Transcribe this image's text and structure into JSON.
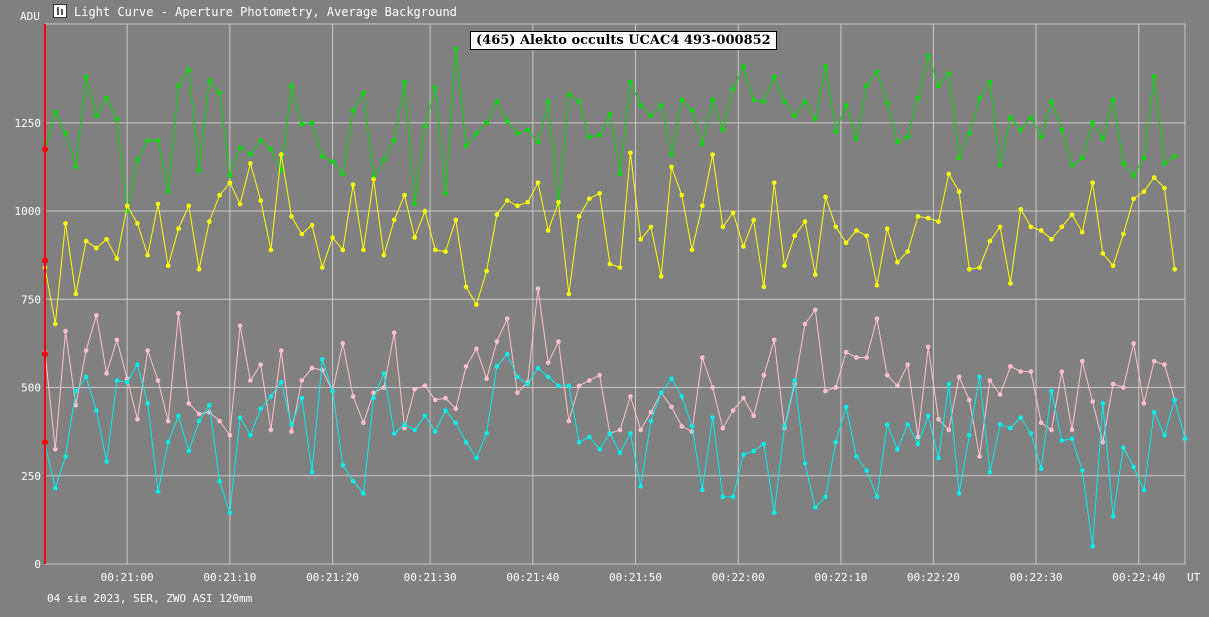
{
  "window": {
    "title": "Light Curve - Aperture Photometry, Average Background",
    "icon": "light-curve-app-icon"
  },
  "footer": {
    "text": "04 sie 2023, SER, ZWO ASI 120mm"
  },
  "chart_data": {
    "type": "line",
    "title": "(465) Alekto occults UCAC4 493-000852",
    "ylabel": "ADU",
    "xlabel": "UT",
    "ylim": [
      0,
      1530
    ],
    "xlim": [
      0,
      111
    ],
    "grid": true,
    "y_ticks": [
      0,
      250,
      500,
      750,
      1000,
      1250
    ],
    "x_ticks": [
      {
        "x": 8,
        "label": "00:21:00"
      },
      {
        "x": 18,
        "label": "00:21:10"
      },
      {
        "x": 28,
        "label": "00:21:20"
      },
      {
        "x": 37.5,
        "label": "00:21:30"
      },
      {
        "x": 47.5,
        "label": "00:21:40"
      },
      {
        "x": 57.5,
        "label": "00:21:50"
      },
      {
        "x": 67.5,
        "label": "00:22:00"
      },
      {
        "x": 77.5,
        "label": "00:22:10"
      },
      {
        "x": 86.5,
        "label": "00:22:20"
      },
      {
        "x": 96.5,
        "label": "00:22:30"
      },
      {
        "x": 106.5,
        "label": "00:22:40"
      }
    ],
    "colors": {
      "green": "#00dd00",
      "yellow": "#ffff00",
      "pink": "#ffc0cb",
      "cyan": "#00eeee",
      "marker": "#ff0000"
    },
    "markers": [
      1175,
      860,
      595,
      345
    ],
    "series": [
      {
        "color": "green",
        "values": [
          1175,
          1280,
          1220,
          1125,
          1380,
          1270,
          1320,
          1260,
          1000,
          1145,
          1200,
          1200,
          1055,
          1355,
          1400,
          1115,
          1370,
          1335,
          1100,
          1180,
          1160,
          1200,
          1175,
          1115,
          1355,
          1245,
          1250,
          1155,
          1140,
          1105,
          1285,
          1335,
          1095,
          1145,
          1200,
          1365,
          1020,
          1240,
          1350,
          1050,
          1460,
          1185,
          1220,
          1250,
          1310,
          1255,
          1220,
          1230,
          1195,
          1310,
          1020,
          1330,
          1310,
          1210,
          1215,
          1275,
          1105,
          1365,
          1300,
          1270,
          1300,
          1160,
          1315,
          1285,
          1190,
          1315,
          1230,
          1345,
          1410,
          1315,
          1310,
          1380,
          1310,
          1270,
          1310,
          1260,
          1410,
          1225,
          1300,
          1205,
          1355,
          1395,
          1305,
          1195,
          1210,
          1320,
          1440,
          1355,
          1390,
          1150,
          1220,
          1320,
          1365,
          1130,
          1265,
          1230,
          1265,
          1210,
          1310,
          1230,
          1130,
          1150,
          1250,
          1205,
          1315,
          1135,
          1100,
          1150,
          1380,
          1135,
          1155
        ]
      },
      {
        "color": "yellow",
        "values": [
          840,
          680,
          965,
          765,
          915,
          895,
          920,
          865,
          1015,
          965,
          875,
          1020,
          845,
          950,
          1015,
          835,
          970,
          1045,
          1080,
          1020,
          1135,
          1030,
          890,
          1160,
          985,
          935,
          960,
          840,
          925,
          890,
          1075,
          890,
          1090,
          875,
          975,
          1045,
          925,
          1000,
          890,
          885,
          975,
          785,
          735,
          830,
          990,
          1030,
          1015,
          1025,
          1080,
          945,
          1025,
          765,
          985,
          1035,
          1050,
          850,
          840,
          1165,
          920,
          955,
          815,
          1125,
          1045,
          890,
          1015,
          1160,
          955,
          995,
          900,
          975,
          785,
          1080,
          845,
          930,
          970,
          820,
          1040,
          955,
          910,
          945,
          930,
          790,
          950,
          855,
          885,
          985,
          980,
          970,
          1105,
          1055,
          835,
          840,
          915,
          955,
          795,
          1005,
          955,
          945,
          920,
          955,
          990,
          940,
          1080,
          880,
          845,
          935,
          1035,
          1055,
          1095,
          1065,
          835
        ]
      },
      {
        "color": "pink",
        "values": [
          600,
          325,
          660,
          450,
          605,
          705,
          540,
          635,
          525,
          410,
          605,
          520,
          405,
          710,
          455,
          425,
          430,
          405,
          365,
          675,
          520,
          565,
          380,
          605,
          375,
          520,
          555,
          550,
          490,
          625,
          475,
          400,
          485,
          500,
          655,
          385,
          495,
          505,
          465,
          470,
          440,
          560,
          610,
          525,
          630,
          695,
          485,
          515,
          780,
          570,
          630,
          405,
          505,
          520,
          535,
          370,
          380,
          475,
          380,
          430,
          485,
          445,
          390,
          375,
          585,
          500,
          385,
          435,
          470,
          420,
          535,
          635,
          385,
          510,
          680,
          720,
          490,
          500,
          600,
          585,
          585,
          695,
          535,
          505,
          565,
          360,
          615,
          410,
          380,
          530,
          465,
          305,
          520,
          480,
          560,
          545,
          545,
          400,
          380,
          545,
          380,
          575,
          460,
          345,
          510,
          500,
          625,
          455,
          575,
          565,
          465
        ]
      },
      {
        "color": "cyan",
        "values": [
          340,
          215,
          305,
          490,
          530,
          435,
          290,
          520,
          515,
          565,
          455,
          205,
          345,
          420,
          320,
          405,
          450,
          235,
          145,
          415,
          365,
          440,
          475,
          515,
          395,
          470,
          260,
          580,
          490,
          280,
          235,
          200,
          470,
          540,
          370,
          395,
          380,
          420,
          375,
          435,
          400,
          345,
          300,
          370,
          560,
          595,
          530,
          510,
          555,
          530,
          505,
          505,
          345,
          360,
          325,
          370,
          315,
          370,
          220,
          405,
          485,
          525,
          475,
          390,
          210,
          415,
          190,
          190,
          310,
          320,
          340,
          145,
          390,
          520,
          285,
          160,
          190,
          345,
          445,
          305,
          265,
          190,
          395,
          325,
          395,
          340,
          420,
          300,
          510,
          200,
          365,
          530,
          260,
          395,
          385,
          415,
          370,
          270,
          490,
          350,
          355,
          265,
          50,
          455,
          135,
          330,
          275,
          210,
          430,
          365,
          465,
          355
        ]
      }
    ]
  }
}
